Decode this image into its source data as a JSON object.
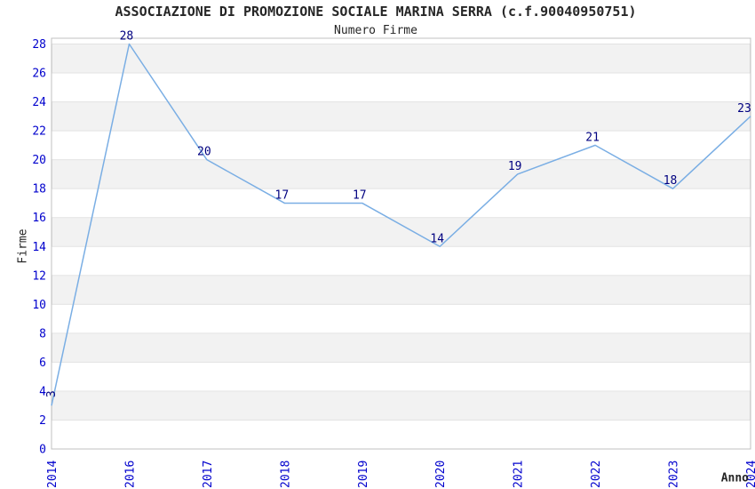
{
  "chart_data": {
    "type": "line",
    "title": "ASSOCIAZIONE DI PROMOZIONE SOCIALE MARINA SERRA (c.f.90040950751)",
    "subtitle": "Numero Firme",
    "xlabel": "Anno",
    "ylabel": "Firme",
    "categories": [
      "2014",
      "2016",
      "2017",
      "2018",
      "2019",
      "2020",
      "2021",
      "2022",
      "2023",
      "2024"
    ],
    "values": [
      3,
      28,
      20,
      17,
      17,
      14,
      19,
      21,
      18,
      23
    ],
    "yticks": [
      0,
      2,
      4,
      6,
      8,
      10,
      12,
      14,
      16,
      18,
      20,
      22,
      24,
      26,
      28
    ],
    "ylim": [
      0,
      28.4
    ],
    "legend": "none",
    "grid": "alternating-horizontal-bands",
    "colors": {
      "line": "#7aaee4",
      "tick_labels": "#0000cd",
      "value_labels": "#000080",
      "title_text": "#262626",
      "band_fill": "#f2f2f2",
      "band_edge": "#e3e3e3",
      "frame": "#c0c0c0",
      "background": "#ffffff"
    }
  }
}
